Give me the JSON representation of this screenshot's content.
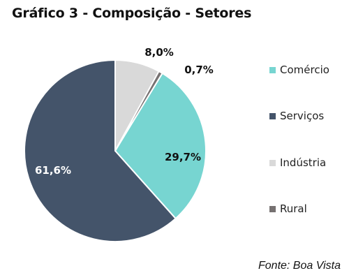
{
  "chart_data": {
    "type": "pie",
    "title": "Gráfico 3 - Composição - Setores",
    "categories": [
      "Comércio",
      "Serviços",
      "Indústria",
      "Rural"
    ],
    "values": [
      29.7,
      61.6,
      8.0,
      0.7
    ],
    "value_labels": [
      "29,7%",
      "61,6%",
      "8,0%",
      "0,7%"
    ],
    "colors": [
      "#77d5d1",
      "#44546a",
      "#d9d9d9",
      "#767171"
    ],
    "legend_position": "right"
  },
  "source": "Fonte: Boa Vista"
}
